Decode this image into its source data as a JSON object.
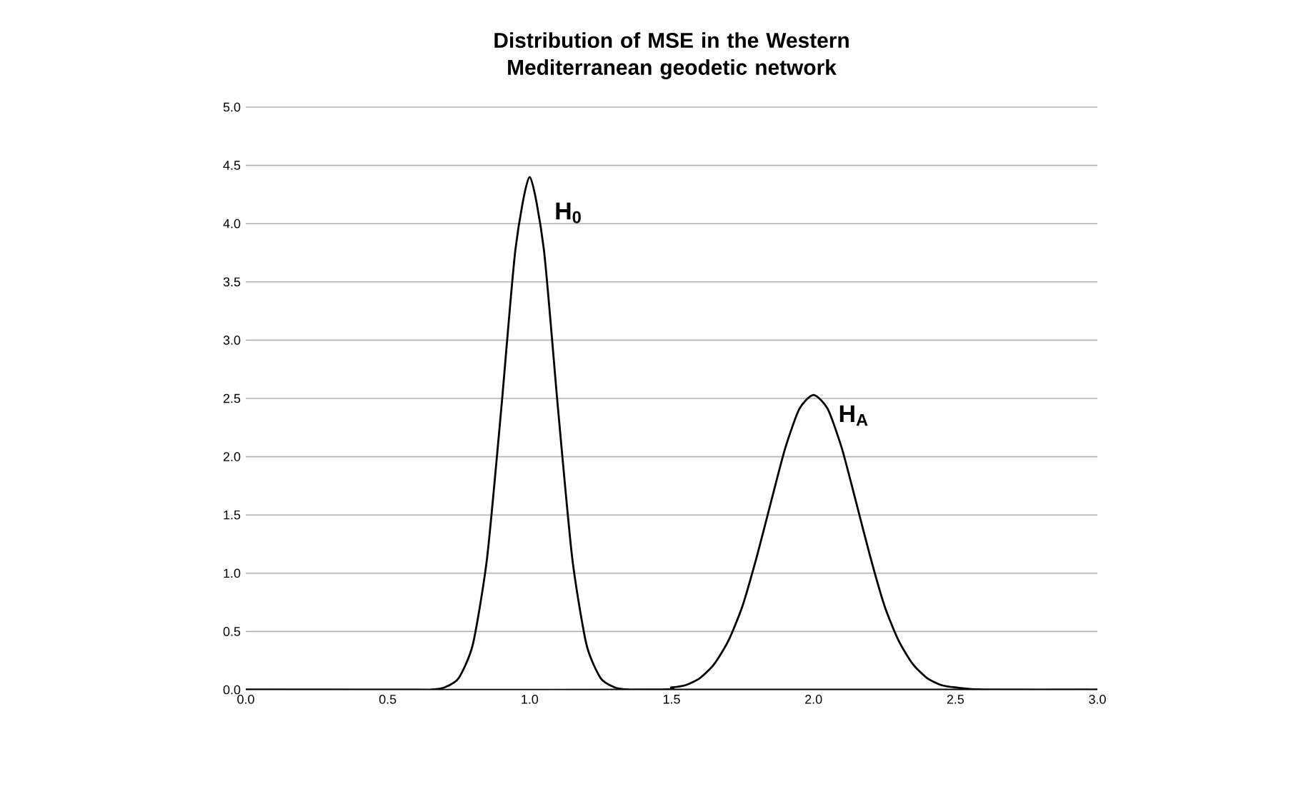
{
  "chart_data": {
    "type": "line",
    "title": "Distribution of MSE in the Western Mediterranean geodetic network",
    "series": [
      {
        "name": "H$_{0}$",
        "color": "#000000",
        "x": [
          0,
          0.6,
          0.65,
          0.7,
          0.75,
          0.8,
          0.85,
          0.9,
          0.95,
          1.0,
          1.05,
          1.1,
          1.15,
          1.2,
          1.25,
          1.3,
          1.35,
          1.4,
          3.0
        ],
        "values": [
          0,
          0,
          0,
          0.02,
          0.1,
          0.39,
          1.13,
          2.41,
          3.78,
          4.4,
          3.78,
          2.41,
          1.13,
          0.39,
          0.1,
          0.02,
          0,
          0,
          0
        ]
      },
      {
        "name": "H$_{A}$",
        "color": "#000000",
        "x": [
          0,
          1.4,
          1.5,
          1.55,
          1.6,
          1.65,
          1.7,
          1.75,
          1.8,
          1.85,
          1.9,
          1.95,
          2.0,
          2.05,
          2.1,
          2.15,
          2.2,
          2.25,
          2.3,
          2.35,
          2.4,
          2.45,
          2.5,
          2.6,
          3.0
        ],
        "values": [
          0,
          0,
          0.02,
          0.04,
          0.1,
          0.22,
          0.42,
          0.72,
          1.14,
          1.61,
          2.07,
          2.41,
          2.53,
          2.41,
          2.07,
          1.61,
          1.14,
          0.72,
          0.42,
          0.22,
          0.1,
          0.04,
          0.02,
          0,
          0
        ]
      }
    ],
    "xlim": [
      0,
      3
    ],
    "ylim": [
      0,
      5
    ],
    "xticks": [
      {
        "value": 0,
        "label": "0.0"
      },
      {
        "value": 0.5,
        "label": "0.5"
      },
      {
        "value": 1,
        "label": "1.0"
      },
      {
        "value": 1.5,
        "label": "1.5"
      },
      {
        "value": 2,
        "label": "2.0"
      },
      {
        "value": 2.5,
        "label": "2.5"
      },
      {
        "value": 3,
        "label": "3.0"
      }
    ],
    "yticks": [
      {
        "value": 0,
        "label": "0.0"
      },
      {
        "value": 0.5,
        "label": "0.5"
      },
      {
        "value": 1,
        "label": "1.0"
      },
      {
        "value": 1.5,
        "label": "1.5"
      },
      {
        "value": 2,
        "label": "2.0"
      },
      {
        "value": 2.5,
        "label": "2.5"
      },
      {
        "value": 3,
        "label": "3.0"
      },
      {
        "value": 3.5,
        "label": "3.5"
      },
      {
        "value": 4,
        "label": "4.0"
      },
      {
        "value": 4.5,
        "label": "4.5"
      },
      {
        "value": 5,
        "label": "5.0"
      }
    ],
    "grid": "y",
    "legend": false,
    "marker": "none",
    "line_style": "solid"
  }
}
